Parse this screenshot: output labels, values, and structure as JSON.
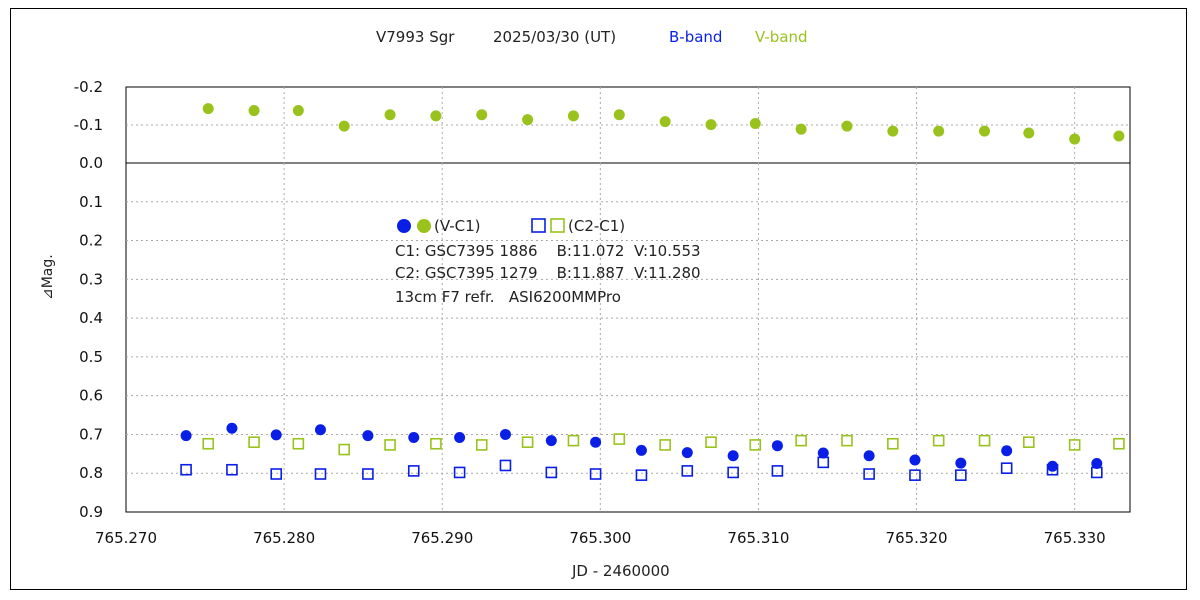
{
  "chart_data": {
    "type": "scatter",
    "title_parts": {
      "object": "V7993 Sgr",
      "date": "2025/03/30 (UT)",
      "band_b": "B-band",
      "band_v": "V-band"
    },
    "xlabel": "JD - 2460000",
    "ylabel": "⊿Mag.",
    "colors": {
      "b": "#0a1fe6",
      "v": "#99c31c"
    },
    "x_ticks": [
      "765.270",
      "765.280",
      "765.290",
      "765.300",
      "765.310",
      "765.320",
      "765.330"
    ],
    "top_panel": {
      "ylim": [
        -0.2,
        0.0
      ],
      "y_ticks": [
        "-0.2",
        "-0.1",
        "0.0"
      ],
      "y_tick_values": [
        -0.2,
        -0.1,
        0.0
      ]
    },
    "bottom_panel": {
      "ylim": [
        0.0,
        0.9
      ],
      "y_ticks": [
        "0.0",
        "0.1",
        "0.2",
        "0.3",
        "0.4",
        "0.5",
        "0.6",
        "0.7",
        "0.8",
        "0.9"
      ],
      "y_tick_values": [
        0.0,
        0.1,
        0.2,
        0.3,
        0.4,
        0.5,
        0.6,
        0.7,
        0.8,
        0.9
      ]
    },
    "xlim": [
      765.27,
      765.3335
    ],
    "series": [
      {
        "name": "B-band (V-C1)",
        "panel": "bottom",
        "marker": "circle",
        "color_key": "b",
        "x": [
          765.2738,
          765.2767,
          765.2795,
          765.2823,
          765.2853,
          765.2882,
          765.2911,
          765.294,
          765.2969,
          765.2997,
          765.3026,
          765.3055,
          765.3084,
          765.3112,
          765.3141,
          765.317,
          765.3199,
          765.3228,
          765.3257,
          765.3286,
          765.3314
        ],
        "y": [
          0.703,
          0.684,
          0.701,
          0.688,
          0.703,
          0.708,
          0.708,
          0.7,
          0.716,
          0.72,
          0.741,
          0.747,
          0.755,
          0.729,
          0.748,
          0.755,
          0.766,
          0.774,
          0.742,
          0.782,
          0.775
        ]
      },
      {
        "name": "B-band (C2-C1)",
        "panel": "bottom",
        "marker": "square",
        "color_key": "b",
        "x": [
          765.2738,
          765.2767,
          765.2795,
          765.2823,
          765.2853,
          765.2882,
          765.2911,
          765.294,
          765.2969,
          765.2997,
          765.3026,
          765.3055,
          765.3084,
          765.3112,
          765.3141,
          765.317,
          765.3199,
          765.3228,
          765.3257,
          765.3286,
          765.3314
        ],
        "y": [
          0.791,
          0.791,
          0.802,
          0.802,
          0.802,
          0.794,
          0.798,
          0.78,
          0.798,
          0.802,
          0.805,
          0.794,
          0.798,
          0.794,
          0.772,
          0.802,
          0.805,
          0.805,
          0.787,
          0.791,
          0.798
        ]
      },
      {
        "name": "V-band (V-C1)",
        "panel": "top",
        "marker": "circle",
        "color_key": "v",
        "x": [
          765.2752,
          765.2781,
          765.2809,
          765.2838,
          765.2867,
          765.2896,
          765.2925,
          765.2954,
          765.2983,
          765.3012,
          765.3041,
          765.307,
          765.3098,
          765.3127,
          765.3156,
          765.3185,
          765.3214,
          765.3243,
          765.3271,
          765.33,
          765.3328
        ],
        "y": [
          -0.143,
          -0.138,
          -0.138,
          -0.097,
          -0.127,
          -0.124,
          -0.127,
          -0.114,
          -0.124,
          -0.127,
          -0.109,
          -0.101,
          -0.104,
          -0.089,
          -0.097,
          -0.084,
          -0.084,
          -0.084,
          -0.079,
          -0.063,
          -0.071
        ]
      },
      {
        "name": "V-band (C2-C1)",
        "panel": "bottom",
        "marker": "square",
        "color_key": "v",
        "x": [
          765.2752,
          765.2781,
          765.2809,
          765.2838,
          765.2867,
          765.2896,
          765.2925,
          765.2954,
          765.2983,
          765.3012,
          765.3041,
          765.307,
          765.3098,
          765.3127,
          765.3156,
          765.3185,
          765.3214,
          765.3243,
          765.3271,
          765.33,
          765.3328
        ],
        "y": [
          0.724,
          0.72,
          0.724,
          0.739,
          0.727,
          0.724,
          0.727,
          0.72,
          0.716,
          0.712,
          0.727,
          0.72,
          0.727,
          0.716,
          0.716,
          0.724,
          0.716,
          0.716,
          0.72,
          0.727,
          0.724
        ]
      }
    ],
    "legend": {
      "entry1": "(V-C1)",
      "entry2": "(C2-C1)",
      "c1": "C1: GSC7395 1886    B:11.072  V:10.553",
      "c2": "C2: GSC7395 1279    B:11.887  V:11.280",
      "setup": "13cm F7 refr.   ASI6200MMPro"
    }
  }
}
